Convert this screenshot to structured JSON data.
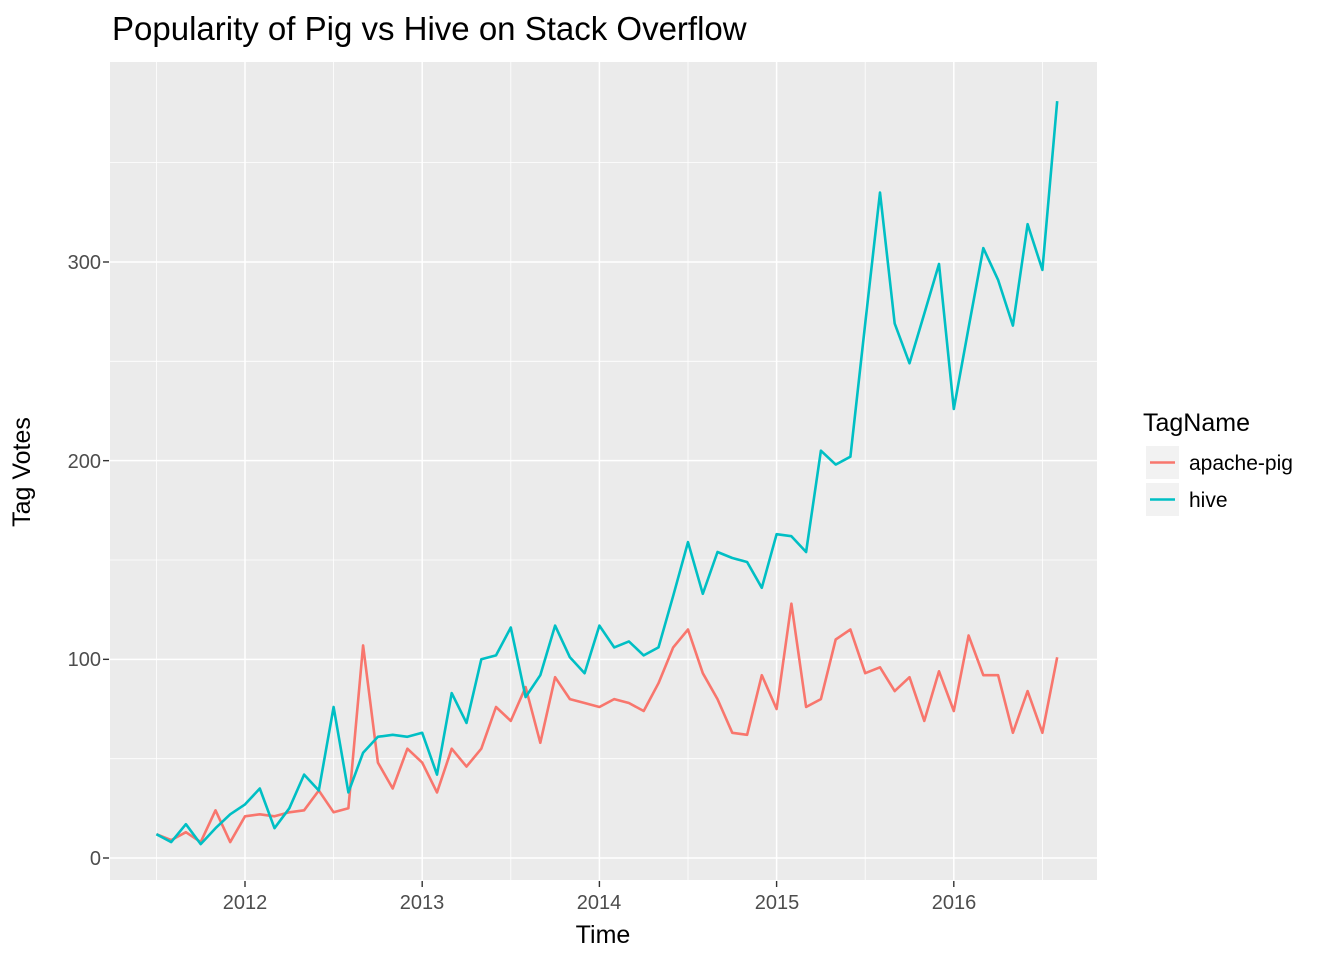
{
  "title": "Popularity of Pig vs Hive on Stack Overflow",
  "axes": {
    "x_label": "Time",
    "y_label": "Tag Votes",
    "x_ticks": [
      "2012",
      "2013",
      "2014",
      "2015",
      "2016"
    ],
    "y_ticks": [
      "0",
      "100",
      "200",
      "300"
    ]
  },
  "legend": {
    "title": "TagName",
    "items": [
      {
        "label": "apache-pig",
        "color": "#F8766D"
      },
      {
        "label": "hive",
        "color": "#00BFC4"
      }
    ]
  },
  "colors": {
    "panel_background": "#EBEBEB",
    "gridline": "#FFFFFF",
    "legend_key_background": "#F2F2F2",
    "tick_text": "#4D4D4D"
  },
  "chart_data": {
    "type": "line",
    "title": "Popularity of Pig vs Hive on Stack Overflow",
    "xlabel": "Time",
    "ylabel": "Tag Votes",
    "x_unit": "month",
    "x_start": "2011-07",
    "x_end": "2016-08",
    "x_tick_years": [
      2012,
      2013,
      2014,
      2015,
      2016
    ],
    "x_minor": [
      2011.5,
      2012.5,
      2013.5,
      2014.5,
      2015.5,
      2016.5
    ],
    "y_ticks": [
      0,
      100,
      200,
      300
    ],
    "y_minor": [
      50,
      150,
      250,
      350
    ],
    "xlim": [
      2011.24,
      2016.81
    ],
    "ylim": [
      -11,
      401
    ],
    "grid": true,
    "legend_position": "right",
    "series": [
      {
        "name": "apache-pig",
        "color": "#F8766D",
        "values": [
          12,
          9,
          13,
          8,
          24,
          8,
          21,
          22,
          21,
          23,
          24,
          34,
          23,
          25,
          107,
          48,
          35,
          55,
          48,
          33,
          55,
          46,
          55,
          76,
          69,
          86,
          58,
          91,
          80,
          78,
          76,
          80,
          78,
          74,
          88,
          106,
          115,
          93,
          80,
          63,
          62,
          92,
          75,
          128,
          76,
          80,
          110,
          115,
          93,
          96,
          84,
          91,
          69,
          94,
          74,
          112,
          92,
          92,
          63,
          84,
          63,
          101
        ]
      },
      {
        "name": "hive",
        "color": "#00BFC4",
        "values": [
          12,
          8,
          17,
          7,
          15,
          22,
          27,
          35,
          15,
          25,
          42,
          34,
          76,
          33,
          53,
          61,
          62,
          61,
          63,
          42,
          83,
          68,
          100,
          102,
          116,
          81,
          92,
          117,
          101,
          93,
          117,
          106,
          109,
          102,
          106,
          132,
          159,
          133,
          154,
          151,
          149,
          136,
          163,
          162,
          154,
          205,
          198,
          202,
          269,
          335,
          269,
          249,
          274,
          299,
          226,
          267,
          307,
          291,
          268,
          319,
          296,
          381
        ]
      }
    ]
  }
}
